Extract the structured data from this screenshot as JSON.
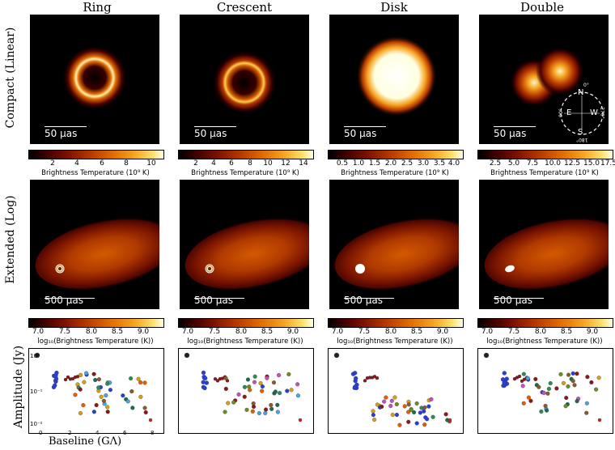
{
  "columns": [
    "Ring",
    "Crescent",
    "Disk",
    "Double"
  ],
  "rows": [
    "Compact (Linear)",
    "Extended (Log)"
  ],
  "compact_scale": "50 μas",
  "extended_scale": "500 μas",
  "compass": {
    "N": "N",
    "E": "E",
    "S": "S",
    "W": "W",
    "n_deg": "0°",
    "e_deg": "90°",
    "s_deg": "180°",
    "w_deg": "270°"
  },
  "compact_cbar_label": "Brightness Temperature (10⁹ K)",
  "extended_cbar_label": "log₁₀(Brightness Temperature (K))",
  "compact_ticks": [
    [
      "2",
      "4",
      "6",
      "8",
      "10"
    ],
    [
      "2",
      "4",
      "6",
      "8",
      "10",
      "12",
      "14"
    ],
    [
      "0.5",
      "1.0",
      "1.5",
      "2.0",
      "2.5",
      "3.0",
      "3.5",
      "4.0"
    ],
    [
      "2.5",
      "5.0",
      "7.5",
      "10.0",
      "12.5",
      "15.0",
      "17.5"
    ]
  ],
  "extended_ticks": [
    "7.0",
    "7.5",
    "8.0",
    "8.5",
    "9.0"
  ],
  "amp_ylabel": "Amplitude (Jy)",
  "amp_xlabel": "Baseline (GΛ)",
  "amp_yticks": [
    "10⁰",
    "10⁻¹",
    "10⁻²"
  ],
  "amp_xticks": [
    "0",
    "2",
    "4",
    "6",
    "8"
  ]
}
